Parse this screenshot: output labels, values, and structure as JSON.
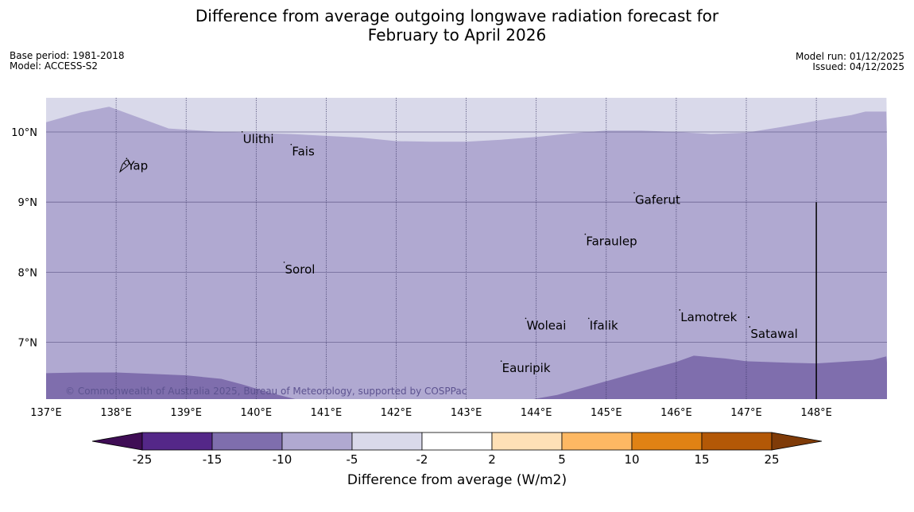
{
  "title_line1": "Difference from average outgoing longwave radiation forecast for",
  "title_line2": "February to April 2026",
  "meta_left": {
    "base_period": "Base period: 1981-2018",
    "model": "Model: ACCESS-S2"
  },
  "meta_right": {
    "model_run": "Model run: 01/12/2025",
    "issued": "Issued: 04/12/2025"
  },
  "map": {
    "lon_range": [
      137.0,
      149.0
    ],
    "lat_range": [
      6.2,
      10.5
    ],
    "lon_ticks": [
      {
        "value": 137,
        "label": "137°E"
      },
      {
        "value": 138,
        "label": "138°E"
      },
      {
        "value": 139,
        "label": "139°E"
      },
      {
        "value": 140,
        "label": "140°E"
      },
      {
        "value": 141,
        "label": "141°E"
      },
      {
        "value": 142,
        "label": "142°E"
      },
      {
        "value": 143,
        "label": "143°E"
      },
      {
        "value": 144,
        "label": "144°E"
      },
      {
        "value": 145,
        "label": "145°E"
      },
      {
        "value": 146,
        "label": "146°E"
      },
      {
        "value": 147,
        "label": "147°E"
      },
      {
        "value": 148,
        "label": "148°E"
      }
    ],
    "lat_ticks": [
      {
        "value": 10,
        "label": "10°N"
      },
      {
        "value": 9,
        "label": "9°N"
      },
      {
        "value": 8,
        "label": "8°N"
      },
      {
        "value": 7,
        "label": "7°N"
      }
    ],
    "copyright": "© Commonwealth of Australia 2025, Bureau of Meteorology, supported by COSPPac",
    "places": [
      {
        "name": "Yap",
        "lon": 138.15,
        "lat": 9.52
      },
      {
        "name": "Ulithi",
        "lon": 139.8,
        "lat": 9.9
      },
      {
        "name": "Fais",
        "lon": 140.5,
        "lat": 9.72
      },
      {
        "name": "Gaferut",
        "lon": 145.4,
        "lat": 9.03
      },
      {
        "name": "Faraulep",
        "lon": 144.7,
        "lat": 8.44
      },
      {
        "name": "Sorol",
        "lon": 140.4,
        "lat": 8.04
      },
      {
        "name": "Lamotrek",
        "lon": 146.05,
        "lat": 7.36
      },
      {
        "name": "Woleai",
        "lon": 143.85,
        "lat": 7.24
      },
      {
        "name": "Ifalik",
        "lon": 144.75,
        "lat": 7.24
      },
      {
        "name": "Satawal",
        "lon": 147.05,
        "lat": 7.12
      },
      {
        "name": "Eauripik",
        "lon": 143.5,
        "lat": 6.63
      }
    ],
    "bands": [
      {
        "range": "-5 to -2",
        "color": "#d9d9ea",
        "top_boundary": [
          [
            137.0,
            10.6
          ],
          [
            149.0,
            10.6
          ]
        ]
      },
      {
        "range": "-10 to -5",
        "color": "#b0a9d1",
        "top_boundary": [
          [
            137.0,
            10.14
          ],
          [
            137.5,
            10.28
          ],
          [
            137.9,
            10.36
          ],
          [
            138.2,
            10.25
          ],
          [
            138.75,
            10.05
          ],
          [
            139.5,
            10.0
          ],
          [
            140.5,
            9.97
          ],
          [
            141.5,
            9.92
          ],
          [
            142.0,
            9.87
          ],
          [
            142.5,
            9.86
          ],
          [
            143.0,
            9.86
          ],
          [
            143.5,
            9.89
          ],
          [
            144.0,
            9.93
          ],
          [
            144.5,
            9.98
          ],
          [
            145.0,
            10.02
          ],
          [
            145.5,
            10.02
          ],
          [
            146.0,
            10.0
          ],
          [
            146.5,
            9.97
          ],
          [
            147.0,
            9.99
          ],
          [
            147.5,
            10.07
          ],
          [
            148.0,
            10.16
          ],
          [
            148.5,
            10.24
          ],
          [
            148.7,
            10.29
          ],
          [
            149.0,
            10.29
          ]
        ]
      },
      {
        "range": "-15 to -10",
        "color": "#7f6ead",
        "top_boundary": [
          [
            137.0,
            6.56
          ],
          [
            137.5,
            6.57
          ],
          [
            138.0,
            6.57
          ],
          [
            138.5,
            6.55
          ],
          [
            139.0,
            6.53
          ],
          [
            139.5,
            6.48
          ],
          [
            139.8,
            6.4
          ],
          [
            140.2,
            6.28
          ],
          [
            140.6,
            6.18
          ],
          [
            143.9,
            6.18
          ],
          [
            144.3,
            6.25
          ],
          [
            144.8,
            6.39
          ],
          [
            145.3,
            6.53
          ],
          [
            145.7,
            6.64
          ],
          [
            146.0,
            6.72
          ],
          [
            146.25,
            6.81
          ],
          [
            146.7,
            6.77
          ],
          [
            147.0,
            6.73
          ],
          [
            147.6,
            6.71
          ],
          [
            148.0,
            6.7
          ],
          [
            148.5,
            6.73
          ],
          [
            148.8,
            6.75
          ],
          [
            149.0,
            6.8
          ]
        ]
      }
    ],
    "contour_line": {
      "lon": 148.0,
      "lat_from": 9.0,
      "lat_to": 6.2
    }
  },
  "colorbar": {
    "label": "Difference from average (W/m2)",
    "ticks": [
      "-25",
      "-15",
      "-10",
      "-5",
      "-2",
      "2",
      "5",
      "10",
      "15",
      "25"
    ],
    "below_color": "#3f0d55",
    "above_color": "#7f3b08",
    "segments": [
      {
        "from": "-25",
        "to": "-15",
        "color": "#542788"
      },
      {
        "from": "-15",
        "to": "-10",
        "color": "#7f6ead"
      },
      {
        "from": "-10",
        "to": "-5",
        "color": "#b0a9d1"
      },
      {
        "from": "-5",
        "to": "-2",
        "color": "#d9d9ea"
      },
      {
        "from": "-2",
        "to": "2",
        "color": "#ffffff"
      },
      {
        "from": "2",
        "to": "5",
        "color": "#fee0b6"
      },
      {
        "from": "5",
        "to": "10",
        "color": "#fdb863"
      },
      {
        "from": "10",
        "to": "15",
        "color": "#e08214"
      },
      {
        "from": "15",
        "to": "25",
        "color": "#b35806"
      }
    ]
  }
}
